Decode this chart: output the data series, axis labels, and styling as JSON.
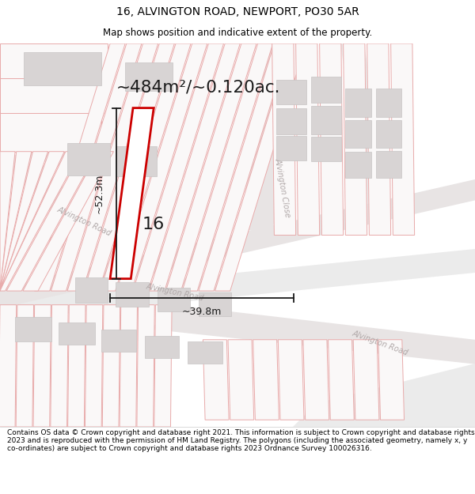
{
  "title_line1": "16, ALVINGTON ROAD, NEWPORT, PO30 5AR",
  "title_line2": "Map shows position and indicative extent of the property.",
  "area_text": "~484m²/~0.120ac.",
  "label_number": "16",
  "dim_vertical": "~52.3m",
  "dim_horizontal": "~39.8m",
  "footer_text": "Contains OS data © Crown copyright and database right 2021. This information is subject to Crown copyright and database rights 2023 and is reproduced with the permission of HM Land Registry. The polygons (including the associated geometry, namely x, y co-ordinates) are subject to Crown copyright and database rights 2023 Ordnance Survey 100026316.",
  "bg_white": "#ffffff",
  "map_bg": "#f7f5f5",
  "plot_fill": "#ffffff",
  "plot_edge": "#e8a0a0",
  "road_fill": "#ebebeb",
  "building_fill": "#d8d4d4",
  "building_edge": "#c8c4c4",
  "main_fill": "#ffffff",
  "main_edge": "#cc0000",
  "dim_color": "#1a1a1a",
  "road_text_color": "#b0a8a8",
  "area_text_color": "#1a1a1a",
  "label_color": "#1a1a1a"
}
